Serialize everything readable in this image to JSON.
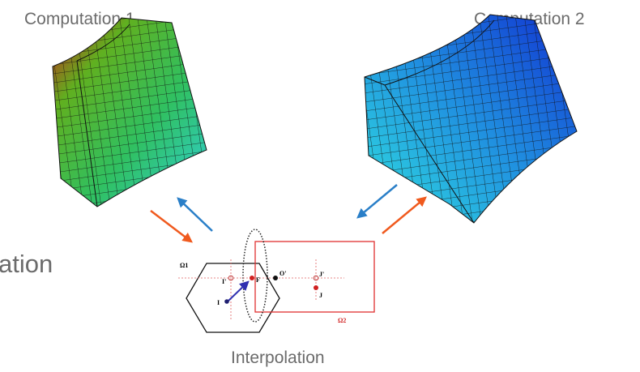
{
  "labels": {
    "computation_1": "Computation 1",
    "computation_2": "Computation 2",
    "left_cut": "ation",
    "interpolation": "Interpolation"
  },
  "diagram": {
    "omega_1": "Ω1",
    "omega_2": "Ω2",
    "point_i": "I",
    "point_i_prime": "I'",
    "point_f": "F",
    "point_o_prime": "O'",
    "point_j": "J",
    "point_j_prime": "J'"
  }
}
